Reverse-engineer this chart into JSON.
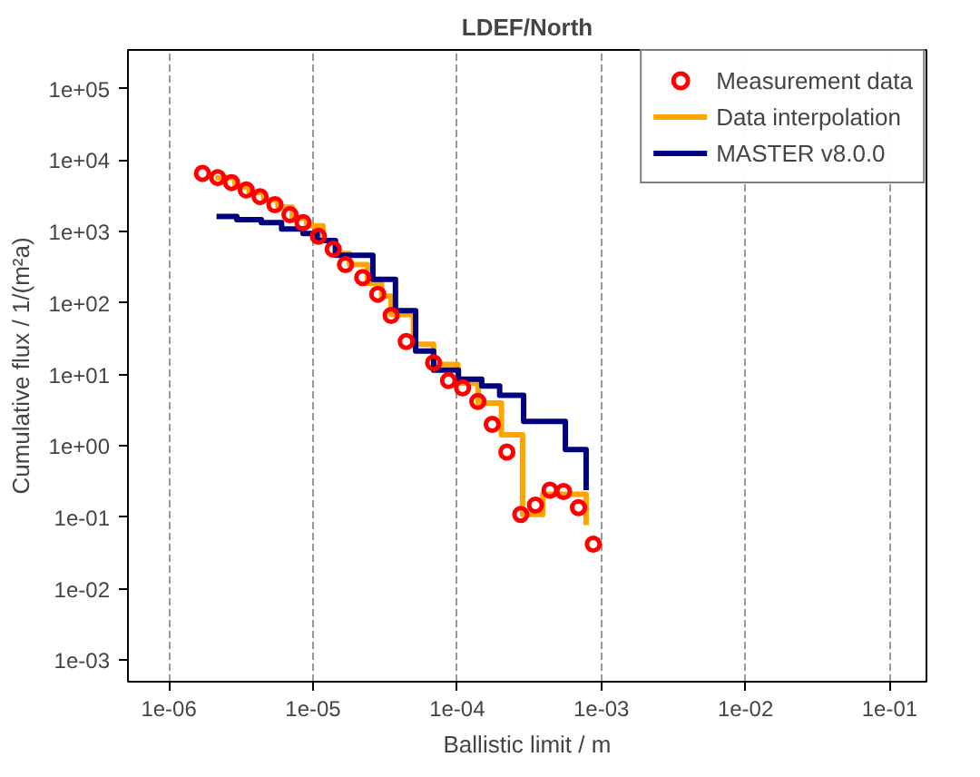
{
  "chart_data": {
    "type": "step",
    "title": "LDEF/North",
    "xlabel": "Ballistic limit / m",
    "ylabel": "Cumulative flux / 1/(m²a)",
    "log": "xy",
    "grid": "x",
    "legend": "top right",
    "xlim": [
      5.2e-07,
      0.18
    ],
    "ylim": [
      0.0005,
      350000
    ],
    "xticks": [
      {
        "value": 1e-06,
        "label": "1e-06"
      },
      {
        "value": 1e-05,
        "label": "1e-05"
      },
      {
        "value": 0.0001,
        "label": "1e-04"
      },
      {
        "value": 0.001,
        "label": "1e-03"
      },
      {
        "value": 0.01,
        "label": "1e-02"
      },
      {
        "value": 0.1,
        "label": "1e-01"
      }
    ],
    "yticks": [
      {
        "value": 0.001,
        "label": "1e-03"
      },
      {
        "value": 0.01,
        "label": "1e-02"
      },
      {
        "value": 0.1,
        "label": "1e-01"
      },
      {
        "value": 1,
        "label": "1e+00"
      },
      {
        "value": 10,
        "label": "1e+01"
      },
      {
        "value": 100,
        "label": "1e+02"
      },
      {
        "value": 1000,
        "label": "1e+03"
      },
      {
        "value": 10000,
        "label": "1e+04"
      },
      {
        "value": 100000,
        "label": "1e+05"
      }
    ],
    "series": [
      {
        "name": "Measurement data",
        "type": "scatter",
        "marker": "circle",
        "color": "#ff0000",
        "x": [
          1.71e-06,
          2.18e-06,
          2.72e-06,
          3.44e-06,
          4.29e-06,
          5.44e-06,
          6.92e-06,
          8.52e-06,
          1.09e-05,
          1.38e-05,
          1.68e-05,
          2.21e-05,
          2.81e-05,
          3.48e-05,
          4.43e-05,
          6.86e-05,
          8.7e-05,
          0.000109,
          0.000139,
          0.000175,
          0.000221,
          0.000276,
          0.000349,
          0.00044,
          0.000547,
          0.000694,
          0.000879
        ],
        "values": [
          6550,
          5710,
          4860,
          3830,
          3090,
          2380,
          1730,
          1340,
          861,
          568,
          346,
          228,
          133,
          67,
          29,
          14.6,
          8.2,
          6.5,
          4.2,
          2.0,
          0.82,
          0.11,
          0.148,
          0.24,
          0.23,
          0.137,
          0.042
        ]
      },
      {
        "name": "Data interpolation",
        "color": "#ffa500",
        "x": [
          2.1e-06,
          2.88e-06,
          3.61e-06,
          4.55e-06,
          5.71e-06,
          7.18e-06,
          9.02e-06,
          1.17e-05,
          1.43e-05,
          1.79e-05,
          2.38e-05,
          2.99e-05,
          3.48e-05,
          4.97e-05,
          6.86e-05,
          0.000101,
          0.00014,
          0.000203,
          0.000284,
          0.000392,
          0.000784
        ],
        "values": [
          5700,
          4240,
          3540,
          2790,
          2200,
          1540,
          1210,
          750,
          495,
          346,
          190,
          125,
          69,
          26.6,
          13.8,
          7.6,
          4.0,
          1.43,
          0.11,
          0.21,
          0.078
        ]
      },
      {
        "name": "MASTER v8.0.0",
        "color": "#000080",
        "x": [
          2.14e-06,
          2.96e-06,
          4.38e-06,
          6.05e-06,
          8.52e-06,
          1.07e-05,
          1.43e-05,
          2.6e-05,
          3.73e-05,
          5.15e-05,
          6.86e-05,
          0.000102,
          0.000148,
          0.000197,
          0.000289,
          0.000563,
          0.000784
        ],
        "values": [
          1630,
          1470,
          1340,
          1090,
          940,
          750,
          466,
          215,
          78,
          21.3,
          11.5,
          8.6,
          6.9,
          5.1,
          2.2,
          0.89,
          0.24
        ]
      }
    ]
  }
}
